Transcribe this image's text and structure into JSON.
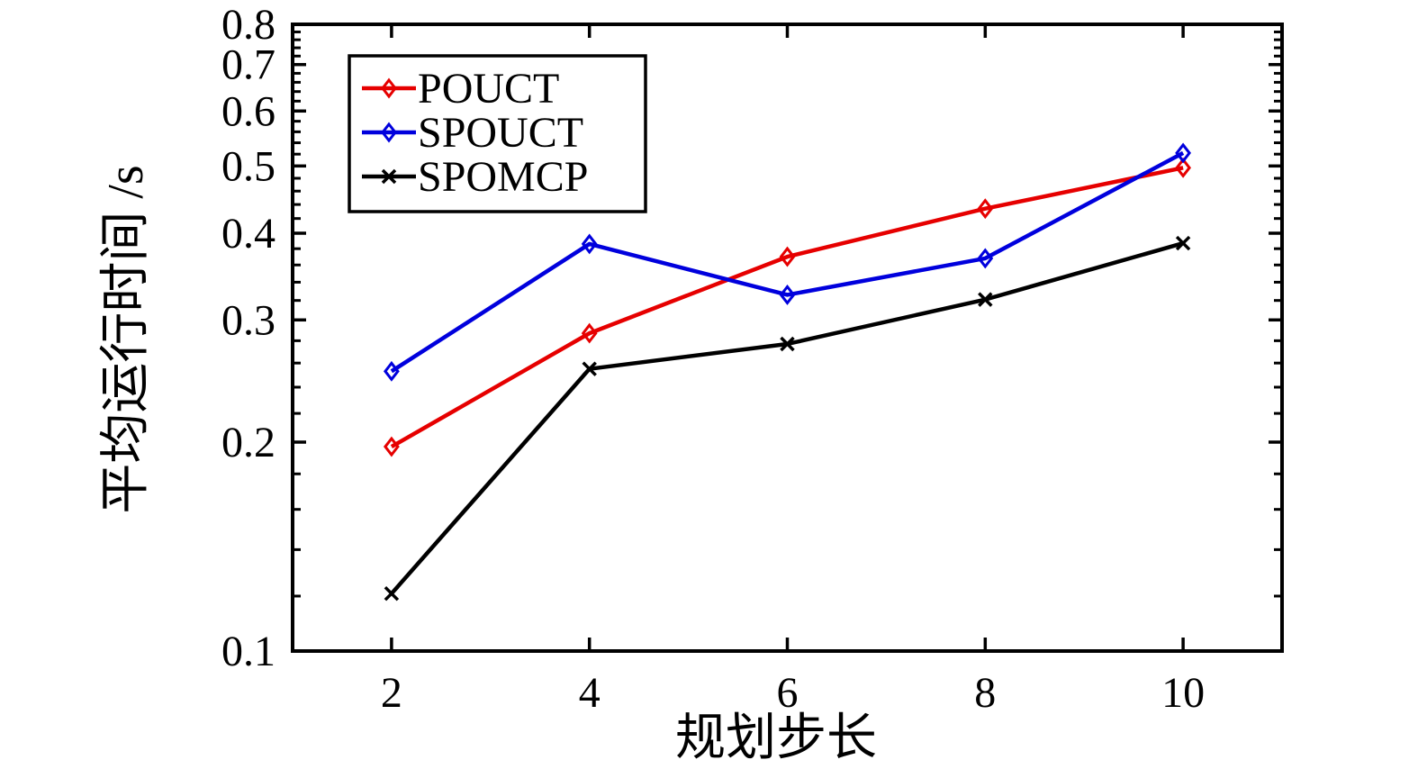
{
  "figure": {
    "background": "#ffffff",
    "axis_color": "#000000"
  },
  "chart_data": {
    "type": "line",
    "title": "",
    "xlabel": "规划步长",
    "ylabel": "平均运行时间 /s",
    "x": [
      2,
      4,
      6,
      8,
      10
    ],
    "series": [
      {
        "name": "POUCT",
        "color": "#e60000",
        "marker": "diamond",
        "values": [
          0.197,
          0.287,
          0.37,
          0.434,
          0.497
        ]
      },
      {
        "name": "SPOUCT",
        "color": "#0000dd",
        "marker": "diamond",
        "values": [
          0.253,
          0.386,
          0.326,
          0.368,
          0.522
        ]
      },
      {
        "name": "SPOMCP",
        "color": "#000000",
        "marker": "x",
        "values": [
          0.121,
          0.255,
          0.277,
          0.321,
          0.387
        ]
      }
    ],
    "xlim": [
      1,
      11
    ],
    "ylim": [
      0.1,
      0.8
    ],
    "yscale": "log",
    "xscale": "linear",
    "xticks": [
      2,
      4,
      6,
      8,
      10
    ],
    "xtick_labels": [
      "2",
      "4",
      "6",
      "8",
      "10"
    ],
    "yticks": [
      0.1,
      0.2,
      0.3,
      0.4,
      0.5,
      0.6,
      0.7,
      0.8
    ],
    "ytick_labels": [
      "0.1",
      "0.2",
      "0.3",
      "0.4",
      "0.5",
      "0.6",
      "0.7",
      "0.8"
    ],
    "y_minor_step": 0.02,
    "grid": false,
    "box": true,
    "legend": {
      "position": "upper-left",
      "entries": [
        "POUCT",
        "SPOUCT",
        "SPOMCP"
      ]
    }
  }
}
